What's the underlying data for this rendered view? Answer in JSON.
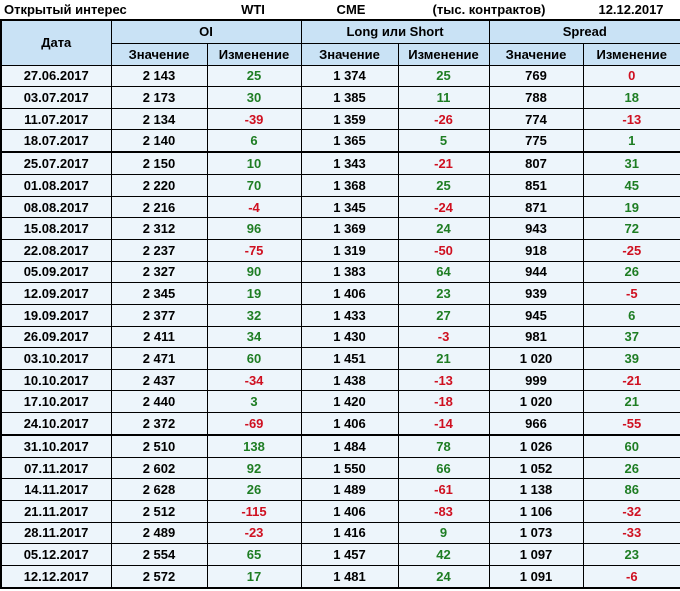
{
  "title_bar": {
    "label": "Открытый интерес",
    "instrument": "WTI",
    "exchange": "CME",
    "units": "(тыс. контрактов)",
    "report_date": "12.12.2017"
  },
  "table": {
    "date_header": "Дата",
    "groups": [
      {
        "label": "OI"
      },
      {
        "label": "Long или Short"
      },
      {
        "label": "Spread"
      }
    ],
    "sub_headers": {
      "value": "Значение",
      "change": "Изменение"
    },
    "colors": {
      "positive_change": "#1e7d23",
      "negative_change": "#cf1020",
      "header_bg": "#c9e2f5",
      "row_bg": "#edf5fb",
      "border": "#000000"
    },
    "rows": [
      {
        "date": "27.06.2017",
        "values": [
          "2 143",
          "25",
          "1 374",
          "25",
          "769",
          "0"
        ],
        "thick_border_below": false
      },
      {
        "date": "03.07.2017",
        "values": [
          "2 173",
          "30",
          "1 385",
          "11",
          "788",
          "18"
        ],
        "thick_border_below": false
      },
      {
        "date": "11.07.2017",
        "values": [
          "2 134",
          "-39",
          "1 359",
          "-26",
          "774",
          "-13"
        ],
        "thick_border_below": false
      },
      {
        "date": "18.07.2017",
        "values": [
          "2 140",
          "6",
          "1 365",
          "5",
          "775",
          "1"
        ],
        "thick_border_below": true
      },
      {
        "date": "25.07.2017",
        "values": [
          "2 150",
          "10",
          "1 343",
          "-21",
          "807",
          "31"
        ],
        "thick_border_below": false
      },
      {
        "date": "01.08.2017",
        "values": [
          "2 220",
          "70",
          "1 368",
          "25",
          "851",
          "45"
        ],
        "thick_border_below": false
      },
      {
        "date": "08.08.2017",
        "values": [
          "2 216",
          "-4",
          "1 345",
          "-24",
          "871",
          "19"
        ],
        "thick_border_below": false
      },
      {
        "date": "15.08.2017",
        "values": [
          "2 312",
          "96",
          "1 369",
          "24",
          "943",
          "72"
        ],
        "thick_border_below": false
      },
      {
        "date": "22.08.2017",
        "values": [
          "2 237",
          "-75",
          "1 319",
          "-50",
          "918",
          "-25"
        ],
        "thick_border_below": false
      },
      {
        "date": "05.09.2017",
        "values": [
          "2 327",
          "90",
          "1 383",
          "64",
          "944",
          "26"
        ],
        "thick_border_below": false
      },
      {
        "date": "12.09.2017",
        "values": [
          "2 345",
          "19",
          "1 406",
          "23",
          "939",
          "-5"
        ],
        "thick_border_below": false
      },
      {
        "date": "19.09.2017",
        "values": [
          "2 377",
          "32",
          "1 433",
          "27",
          "945",
          "6"
        ],
        "thick_border_below": false
      },
      {
        "date": "26.09.2017",
        "values": [
          "2 411",
          "34",
          "1 430",
          "-3",
          "981",
          "37"
        ],
        "thick_border_below": false
      },
      {
        "date": "03.10.2017",
        "values": [
          "2 471",
          "60",
          "1 451",
          "21",
          "1 020",
          "39"
        ],
        "thick_border_below": false
      },
      {
        "date": "10.10.2017",
        "values": [
          "2 437",
          "-34",
          "1 438",
          "-13",
          "999",
          "-21"
        ],
        "thick_border_below": false
      },
      {
        "date": "17.10.2017",
        "values": [
          "2 440",
          "3",
          "1 420",
          "-18",
          "1 020",
          "21"
        ],
        "thick_border_below": false
      },
      {
        "date": "24.10.2017",
        "values": [
          "2 372",
          "-69",
          "1 406",
          "-14",
          "966",
          "-55"
        ],
        "thick_border_below": true
      },
      {
        "date": "31.10.2017",
        "values": [
          "2 510",
          "138",
          "1 484",
          "78",
          "1 026",
          "60"
        ],
        "thick_border_below": false
      },
      {
        "date": "07.11.2017",
        "values": [
          "2 602",
          "92",
          "1 550",
          "66",
          "1 052",
          "26"
        ],
        "thick_border_below": false
      },
      {
        "date": "14.11.2017",
        "values": [
          "2 628",
          "26",
          "1 489",
          "-61",
          "1 138",
          "86"
        ],
        "thick_border_below": false
      },
      {
        "date": "21.11.2017",
        "values": [
          "2 512",
          "-115",
          "1 406",
          "-83",
          "1 106",
          "-32"
        ],
        "thick_border_below": false
      },
      {
        "date": "28.11.2017",
        "values": [
          "2 489",
          "-23",
          "1 416",
          "9",
          "1 073",
          "-33"
        ],
        "thick_border_below": false
      },
      {
        "date": "05.12.2017",
        "values": [
          "2 554",
          "65",
          "1 457",
          "42",
          "1 097",
          "23"
        ],
        "thick_border_below": false
      },
      {
        "date": "12.12.2017",
        "values": [
          "2 572",
          "17",
          "1 481",
          "24",
          "1 091",
          "-6"
        ],
        "thick_border_below": false
      }
    ]
  }
}
